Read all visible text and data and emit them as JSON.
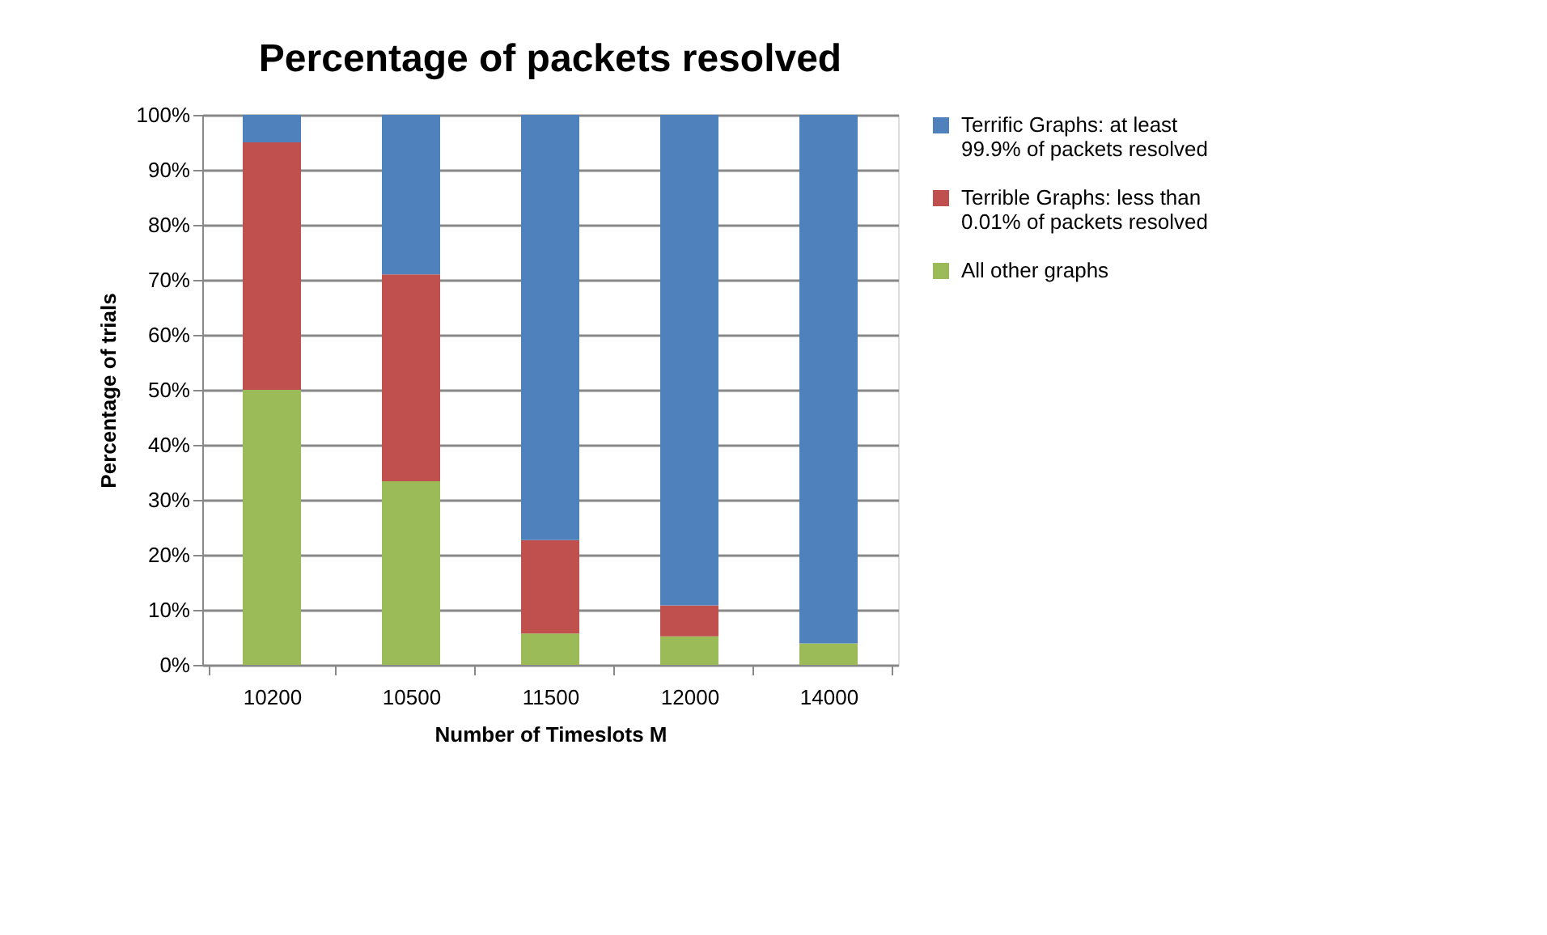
{
  "chart_data": {
    "type": "bar",
    "title": "Percentage of packets resolved",
    "xlabel": "Number of Timeslots M",
    "ylabel": "Percentage of trials",
    "categories": [
      "10200",
      "10500",
      "11500",
      "12000",
      "14000"
    ],
    "stacked": true,
    "series": [
      {
        "name": "All other graphs",
        "color": "#9bbb59",
        "values": [
          50,
          33.4,
          5.7,
          5.2,
          3.9
        ]
      },
      {
        "name": "Terrible Graphs: less than 0.01% of packets resolved",
        "color": "#c0504d",
        "values": [
          45,
          37.6,
          17,
          5.6,
          0
        ]
      },
      {
        "name": "Terrific Graphs: at least 99.9% of packets resolved",
        "color": "#4f81bd",
        "values": [
          5,
          29,
          77.3,
          89.2,
          96.1
        ]
      }
    ],
    "ylim": [
      0,
      100
    ],
    "yticks": [
      {
        "value": 0,
        "label": "0%"
      },
      {
        "value": 10,
        "label": "10%"
      },
      {
        "value": 20,
        "label": "20%"
      },
      {
        "value": 30,
        "label": "30%"
      },
      {
        "value": 40,
        "label": "40%"
      },
      {
        "value": 50,
        "label": "50%"
      },
      {
        "value": 60,
        "label": "60%"
      },
      {
        "value": 70,
        "label": "70%"
      },
      {
        "value": 80,
        "label": "80%"
      },
      {
        "value": 90,
        "label": "90%"
      },
      {
        "value": 100,
        "label": "100%"
      }
    ],
    "grid": "y",
    "legend": "right"
  }
}
